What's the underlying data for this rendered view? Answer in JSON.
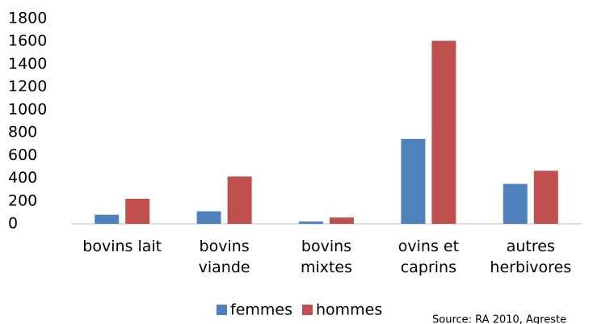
{
  "chart_data": {
    "type": "bar",
    "categories": [
      "bovins lait",
      "bovins\nviande",
      "bovins\nmixtes",
      "ovins et\ncaprins",
      "autres\nherbivores"
    ],
    "series": [
      {
        "name": "femmes",
        "color": "#4f81bd",
        "values": [
          80,
          110,
          20,
          745,
          350
        ]
      },
      {
        "name": "hommes",
        "color": "#c0504d",
        "values": [
          220,
          415,
          55,
          1605,
          465
        ]
      }
    ],
    "ylim": [
      0,
      1800
    ],
    "yticks": [
      0,
      200,
      400,
      600,
      800,
      1000,
      1200,
      1400,
      1600,
      1800
    ],
    "grid": false,
    "legend": "bottom",
    "annotation": "Source: RA 2010, Agreste"
  }
}
